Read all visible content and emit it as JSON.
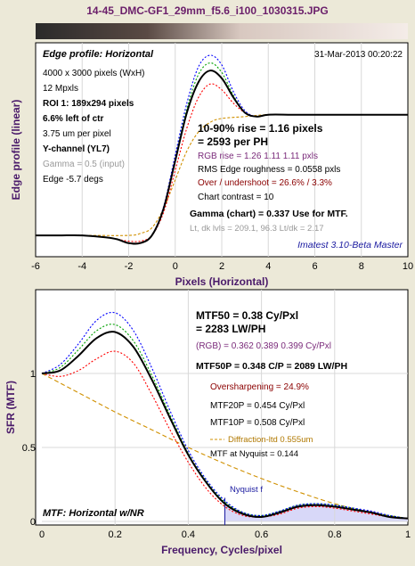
{
  "header": {
    "title": "14-45_DMC-GF1_29mm_f5.6_i100_1030315.JPG"
  },
  "edge_panel": {
    "heading": "Edge profile: Horizontal",
    "date": "31-Mar-2013 00:20:22",
    "info": [
      {
        "text": "4000 x 3000 pixels (WxH)",
        "bold": false,
        "gray": false
      },
      {
        "text": "12 Mpxls",
        "bold": false,
        "gray": false
      },
      {
        "text": "ROI 1:  189x294 pixels",
        "bold": true,
        "gray": false
      },
      {
        "text": "6.6% left of ctr",
        "bold": true,
        "gray": false
      },
      {
        "text": "3.75 um per pixel",
        "bold": false,
        "gray": false
      },
      {
        "text": "Y-channel  (YL7)",
        "bold": true,
        "gray": false
      },
      {
        "text": "Gamma = 0.5 (input)",
        "bold": false,
        "gray": true
      },
      {
        "text": "Edge -5.7 degs",
        "bold": false,
        "gray": false
      }
    ],
    "rise_main": "10-90% rise = 1.16 pixels",
    "rise_ph": "= 2593 per PH",
    "rgb_rise": "RGB rise = 1.26  1.11  1.11 pxls",
    "rms": "RMS Edge roughness = 0.0558 pxls",
    "overshoot": "Over / undershoot = 26.6% / 3.3%",
    "contrast": "Chart contrast = 10",
    "gamma_chart": "Gamma (chart) = 0.337  Use for MTF.",
    "levels": "Lt, dk lvls = 209.1, 96.3    Lt/dk = 2.17",
    "watermark": "Imatest 3.10-Beta Master",
    "ylabel": "Edge profile (linear)",
    "xlabel": "Pixels (Horizontal)"
  },
  "mtf_panel": {
    "mtf50": "MTF50 = 0.38 Cy/Pxl",
    "mtf50_lw": "= 2283 LW/PH",
    "rgb": "(RGB) = 0.362  0.389  0.399 Cy/Pxl",
    "mtf50p": "MTF50P = 0.348 C/P = 2089 LW/PH",
    "oversharp": "Oversharpening = 24.9%",
    "mtf20p": "MTF20P = 0.454 Cy/Pxl",
    "mtf10p": "MTF10P = 0.508 Cy/Pxl",
    "diffraction": "Diffraction-ltd  0.555um",
    "nyq_mtf": "MTF at Nyquist = 0.144",
    "nyquist_label": "Nyquist f",
    "bottom_label": "MTF: Horizontal w/NR",
    "ylabel": "SFR (MTF)",
    "xlabel": "Frequency, Cycles/pixel"
  },
  "chart_data": [
    {
      "type": "line",
      "title": "Edge profile: Horizontal",
      "xlabel": "Pixels (Horizontal)",
      "ylabel": "Edge profile (linear)",
      "xlim": [
        -6,
        10
      ],
      "xticks": [
        -6,
        -4,
        -2,
        0,
        2,
        4,
        6,
        8,
        10
      ],
      "grid": true,
      "series": [
        {
          "color": "#000000",
          "x": [
            -6,
            -5,
            -4,
            -3,
            -2.5,
            -2,
            -1.5,
            -1,
            -0.5,
            0,
            0.5,
            1,
            1.5,
            2,
            2.5,
            3,
            3.5,
            4,
            5,
            6,
            7,
            8,
            10
          ],
          "y": [
            0.06,
            0.06,
            0.06,
            0.05,
            0.04,
            0.02,
            0.02,
            0.06,
            0.2,
            0.45,
            0.7,
            0.86,
            0.92,
            0.88,
            0.78,
            0.7,
            0.68,
            0.69,
            0.69,
            0.69,
            0.69,
            0.69,
            0.69
          ]
        },
        {
          "color": "#ff0000",
          "x": [
            -6,
            -5,
            -4,
            -3,
            -2.5,
            -2,
            -1.5,
            -1,
            -0.5,
            0,
            0.5,
            1,
            1.5,
            2,
            2.5,
            3,
            3.5,
            4,
            5,
            6,
            7,
            8,
            10
          ],
          "y": [
            0.06,
            0.06,
            0.06,
            0.05,
            0.04,
            0.03,
            0.03,
            0.06,
            0.18,
            0.4,
            0.62,
            0.78,
            0.85,
            0.82,
            0.75,
            0.7,
            0.68,
            0.69,
            0.69,
            0.69,
            0.69,
            0.69,
            0.69
          ]
        },
        {
          "color": "#00a000",
          "x": [
            -6,
            -5,
            -4,
            -3,
            -2.5,
            -2,
            -1.5,
            -1,
            -0.5,
            0,
            0.5,
            1,
            1.5,
            2,
            2.5,
            3,
            3.5,
            4,
            5,
            6,
            7,
            8,
            10
          ],
          "y": [
            0.06,
            0.06,
            0.06,
            0.05,
            0.04,
            0.02,
            0.02,
            0.06,
            0.2,
            0.46,
            0.72,
            0.9,
            0.96,
            0.91,
            0.79,
            0.7,
            0.68,
            0.69,
            0.69,
            0.69,
            0.69,
            0.69,
            0.69
          ]
        },
        {
          "color": "#0000ff",
          "x": [
            -6,
            -5,
            -4,
            -3,
            -2.5,
            -2,
            -1.5,
            -1,
            -0.5,
            0,
            0.5,
            1,
            1.5,
            2,
            2.5,
            3,
            3.5,
            4,
            5,
            6,
            7,
            8,
            10
          ],
          "y": [
            0.06,
            0.06,
            0.06,
            0.05,
            0.04,
            0.02,
            0.02,
            0.06,
            0.21,
            0.48,
            0.75,
            0.94,
            1.0,
            0.95,
            0.81,
            0.71,
            0.68,
            0.69,
            0.69,
            0.69,
            0.69,
            0.69,
            0.69
          ]
        },
        {
          "color": "#d09000",
          "x": [
            -6,
            -4,
            -2,
            -1.5,
            -1,
            -0.5,
            0,
            0.5,
            1,
            1.5,
            2,
            3,
            4,
            6,
            10
          ],
          "y": [
            0.06,
            0.06,
            0.06,
            0.07,
            0.1,
            0.2,
            0.35,
            0.5,
            0.6,
            0.65,
            0.67,
            0.68,
            0.69,
            0.69,
            0.69
          ]
        }
      ]
    },
    {
      "type": "line",
      "title": "MTF: Horizontal w/NR",
      "xlabel": "Frequency, Cycles/pixel",
      "ylabel": "SFR (MTF)",
      "xlim": [
        0,
        1
      ],
      "ylim": [
        0,
        1.5
      ],
      "xticks": [
        0,
        0.2,
        0.4,
        0.6,
        0.8,
        1
      ],
      "yticks": [
        0,
        0.5,
        1
      ],
      "grid": true,
      "nyquist": 0.5,
      "series": [
        {
          "color": "#000000",
          "x": [
            0,
            0.05,
            0.1,
            0.15,
            0.2,
            0.25,
            0.3,
            0.35,
            0.4,
            0.45,
            0.5,
            0.55,
            0.6,
            0.65,
            0.7,
            0.75,
            0.8,
            0.85,
            0.9,
            0.95,
            1
          ],
          "y": [
            1.0,
            1.02,
            1.12,
            1.24,
            1.28,
            1.18,
            0.96,
            0.7,
            0.45,
            0.26,
            0.12,
            0.05,
            0.03,
            0.06,
            0.1,
            0.11,
            0.1,
            0.08,
            0.06,
            0.03,
            0.02
          ]
        },
        {
          "color": "#ff0000",
          "x": [
            0,
            0.05,
            0.1,
            0.15,
            0.2,
            0.25,
            0.3,
            0.35,
            0.4,
            0.45,
            0.5,
            0.55,
            0.6,
            0.65,
            0.7,
            0.75,
            0.8,
            0.85,
            0.9,
            0.95,
            1
          ],
          "y": [
            1.0,
            0.98,
            1.02,
            1.1,
            1.15,
            1.07,
            0.86,
            0.62,
            0.4,
            0.22,
            0.1,
            0.04,
            0.03,
            0.05,
            0.09,
            0.1,
            0.09,
            0.07,
            0.05,
            0.03,
            0.02
          ]
        },
        {
          "color": "#00a000",
          "x": [
            0,
            0.05,
            0.1,
            0.15,
            0.2,
            0.25,
            0.3,
            0.35,
            0.4,
            0.45,
            0.5,
            0.55,
            0.6,
            0.65,
            0.7,
            0.75,
            0.8,
            0.85,
            0.9,
            0.95,
            1
          ],
          "y": [
            1.0,
            1.04,
            1.16,
            1.29,
            1.33,
            1.22,
            0.99,
            0.72,
            0.46,
            0.27,
            0.13,
            0.06,
            0.04,
            0.07,
            0.11,
            0.12,
            0.11,
            0.09,
            0.06,
            0.04,
            0.02
          ]
        },
        {
          "color": "#0000ff",
          "x": [
            0,
            0.05,
            0.1,
            0.15,
            0.2,
            0.25,
            0.3,
            0.35,
            0.4,
            0.45,
            0.5,
            0.55,
            0.6,
            0.65,
            0.7,
            0.75,
            0.8,
            0.85,
            0.9,
            0.95,
            1
          ],
          "y": [
            1.0,
            1.06,
            1.2,
            1.36,
            1.41,
            1.29,
            1.04,
            0.75,
            0.48,
            0.28,
            0.14,
            0.06,
            0.04,
            0.07,
            0.11,
            0.12,
            0.11,
            0.09,
            0.07,
            0.04,
            0.02
          ]
        },
        {
          "color": "#d09000",
          "x": [
            0,
            0.1,
            0.2,
            0.3,
            0.4,
            0.5,
            0.6,
            0.7,
            0.8,
            0.9,
            1
          ],
          "y": [
            1.0,
            0.87,
            0.74,
            0.62,
            0.5,
            0.39,
            0.29,
            0.2,
            0.12,
            0.06,
            0.02
          ]
        }
      ]
    }
  ]
}
